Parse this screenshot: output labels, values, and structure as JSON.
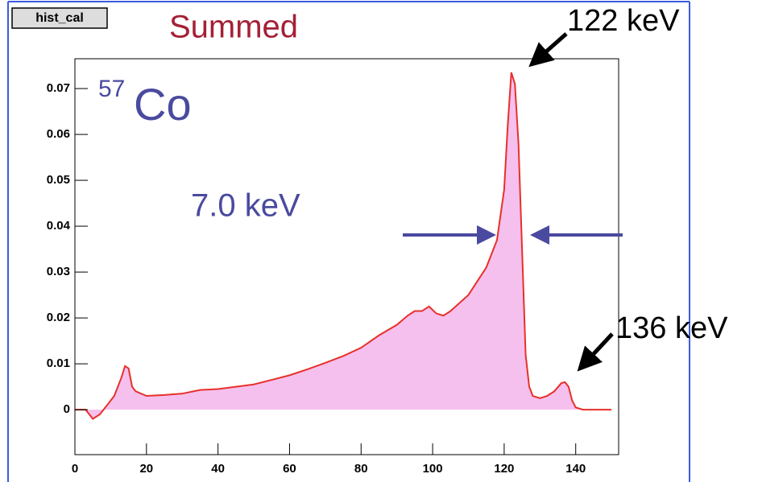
{
  "chart_data": {
    "type": "area",
    "histogram_name": "hist_cal",
    "title": "Summed",
    "annotations": [
      "57",
      "Co",
      "7.0 keV",
      "122 keV",
      "136 keV"
    ],
    "x": [
      0,
      3,
      5,
      7,
      9,
      11,
      13,
      14,
      15,
      16,
      17,
      20,
      25,
      30,
      35,
      40,
      45,
      50,
      55,
      60,
      65,
      70,
      75,
      80,
      85,
      90,
      93,
      95,
      97,
      99,
      101,
      103,
      105,
      110,
      115,
      118,
      120,
      121,
      122,
      123,
      124,
      125,
      126,
      127,
      128,
      130,
      132,
      134,
      136,
      137,
      138,
      139,
      140,
      142,
      145,
      150
    ],
    "values": [
      0,
      0,
      -0.002,
      -0.001,
      0.001,
      0.003,
      0.007,
      0.0095,
      0.009,
      0.005,
      0.004,
      0.003,
      0.0032,
      0.0035,
      0.0043,
      0.0045,
      0.005,
      0.0055,
      0.0065,
      0.0075,
      0.0088,
      0.0102,
      0.0117,
      0.0135,
      0.0162,
      0.0185,
      0.0205,
      0.0215,
      0.0215,
      0.0225,
      0.021,
      0.0205,
      0.0215,
      0.025,
      0.031,
      0.037,
      0.048,
      0.062,
      0.0735,
      0.071,
      0.058,
      0.035,
      0.012,
      0.005,
      0.003,
      0.0025,
      0.003,
      0.004,
      0.0058,
      0.006,
      0.005,
      0.002,
      0.0005,
      0,
      0,
      0
    ],
    "color": "#e8302a",
    "fill_color": "#f5c0ee",
    "xlim": [
      0,
      152
    ],
    "ylim": [
      -0.0098,
      0.0765
    ],
    "xticks": [
      0,
      20,
      40,
      60,
      80,
      100,
      120,
      140
    ],
    "yticks": [
      0,
      0.01,
      0.02,
      0.03,
      0.04,
      0.05,
      0.06,
      0.07
    ]
  }
}
